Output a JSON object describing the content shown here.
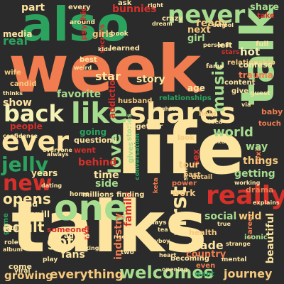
{
  "palette": {
    "background": "#2b2b2b",
    "orange": "#f07c4f",
    "cream": "#fde5a0",
    "light_green": "#a6dc8e",
    "green": "#2ca25f",
    "red": "#d7302b",
    "pale_yellow": "#f5f2b5",
    "dark_red": "#a31f2c",
    "sand": "#f6c97d"
  },
  "words": [
    {
      "text": "week"
    },
    {
      "text": "talks"
    },
    {
      "text": "life"
    },
    {
      "text": "also"
    },
    {
      "text": "talk"
    },
    {
      "text": "one"
    },
    {
      "text": "shares"
    },
    {
      "text": "like"
    },
    {
      "text": "back"
    },
    {
      "text": "never"
    },
    {
      "text": "ever"
    },
    {
      "text": "really"
    },
    {
      "text": "new"
    },
    {
      "text": "jelly"
    },
    {
      "text": "first"
    },
    {
      "text": "opens"
    },
    {
      "text": "welcomes"
    },
    {
      "text": "growing"
    },
    {
      "text": "everything"
    },
    {
      "text": "journey"
    },
    {
      "text": "music"
    },
    {
      "text": "love"
    },
    {
      "text": "got"
    },
    {
      "text": "fans"
    },
    {
      "text": "made"
    },
    {
      "text": "country"
    },
    {
      "text": "social"
    },
    {
      "text": "wild"
    },
    {
      "text": "sex"
    },
    {
      "text": "things"
    },
    {
      "text": "getting"
    },
    {
      "text": "way"
    },
    {
      "text": "world"
    },
    {
      "text": "favorite"
    },
    {
      "text": "show"
    },
    {
      "text": "people"
    },
    {
      "text": "years"
    },
    {
      "text": "star"
    },
    {
      "text": "story"
    },
    {
      "text": "hot"
    },
    {
      "text": "share"
    },
    {
      "text": "take"
    },
    {
      "text": "part"
    },
    {
      "text": "every"
    },
    {
      "text": "ask"
    },
    {
      "text": "media"
    },
    {
      "text": "real"
    },
    {
      "text": "girls"
    },
    {
      "text": "bunnies"
    },
    {
      "text": "ready"
    },
    {
      "text": "next"
    },
    {
      "text": "girl"
    },
    {
      "text": "crazy"
    },
    {
      "text": "content"
    },
    {
      "text": "relationship"
    },
    {
      "text": "trauma"
    },
    {
      "text": "confess"
    },
    {
      "text": "fame"
    },
    {
      "text": "age"
    },
    {
      "text": "give"
    },
    {
      "text": "best"
    },
    {
      "text": "husband"
    },
    {
      "text": "addiction"
    },
    {
      "text": "relationships"
    },
    {
      "text": "going"
    },
    {
      "text": "questions"
    },
    {
      "text": "together"
    },
    {
      "text": "time"
    },
    {
      "text": "side"
    },
    {
      "text": "behind"
    },
    {
      "text": "millions"
    },
    {
      "text": "finding"
    },
    {
      "text": "work"
    },
    {
      "text": "tour"
    },
    {
      "text": "past"
    },
    {
      "text": "spill"
    },
    {
      "text": "bad"
    },
    {
      "text": "someone"
    },
    {
      "text": "advice"
    },
    {
      "text": "industry"
    },
    {
      "text": "family"
    },
    {
      "text": "gives"
    },
    {
      "text": "beautiful"
    },
    {
      "text": "drama"
    },
    {
      "text": "baby"
    },
    {
      "text": "toxic"
    },
    {
      "text": "touch"
    },
    {
      "text": "went"
    },
    {
      "text": "look"
    },
    {
      "text": "power"
    },
    {
      "text": "keta"
    },
    {
      "text": "aka"
    },
    {
      "text": "health"
    },
    {
      "text": "want"
    },
    {
      "text": "even"
    },
    {
      "text": "becoming"
    },
    {
      "text": "two"
    },
    {
      "text": "adult"
    },
    {
      "text": "home"
    },
    {
      "text": "viral"
    },
    {
      "text": "full"
    },
    {
      "text": "left"
    },
    {
      "text": "stars"
    },
    {
      "text": "psychic"
    },
    {
      "text": "secrets"
    },
    {
      "text": "learned"
    },
    {
      "text": "book"
    },
    {
      "text": "wife"
    },
    {
      "text": "candid"
    },
    {
      "text": "thinks"
    },
    {
      "text": "stories"
    },
    {
      "text": "conversation"
    },
    {
      "text": "self"
    },
    {
      "text": "detail"
    },
    {
      "text": "plays"
    },
    {
      "text": "iconic"
    },
    {
      "text": "career"
    },
    {
      "text": "play"
    },
    {
      "text": "mental"
    },
    {
      "text": "come"
    },
    {
      "text": "game"
    },
    {
      "text": "returns"
    },
    {
      "text": "role"
    },
    {
      "text": "everyone"
    },
    {
      "text": "always"
    },
    {
      "text": "help"
    },
    {
      "text": "guest"
    },
    {
      "text": "around"
    },
    {
      "text": "right"
    },
    {
      "text": "personal"
    },
    {
      "text": "dream"
    },
    {
      "text": "idea"
    },
    {
      "text": "confidence"
    },
    {
      "text": "working"
    },
    {
      "text": "strange"
    },
    {
      "text": "playboy"
    },
    {
      "text": "viking"
    },
    {
      "text": "album"
    },
    {
      "text": "tea"
    },
    {
      "text": "via"
    },
    {
      "text": "heart"
    },
    {
      "text": "true"
    },
    {
      "text": "dating"
    },
    {
      "text": "rise"
    },
    {
      "text": "explains"
    },
    {
      "text": "kids"
    },
    {
      "text": "weird"
    },
    {
      "text": "sexual"
    },
    {
      "text": "opening"
    },
    {
      "text": "school"
    },
    {
      "text": "son"
    },
    {
      "text": "daughter"
    },
    {
      "text": "life"
    }
  ]
}
